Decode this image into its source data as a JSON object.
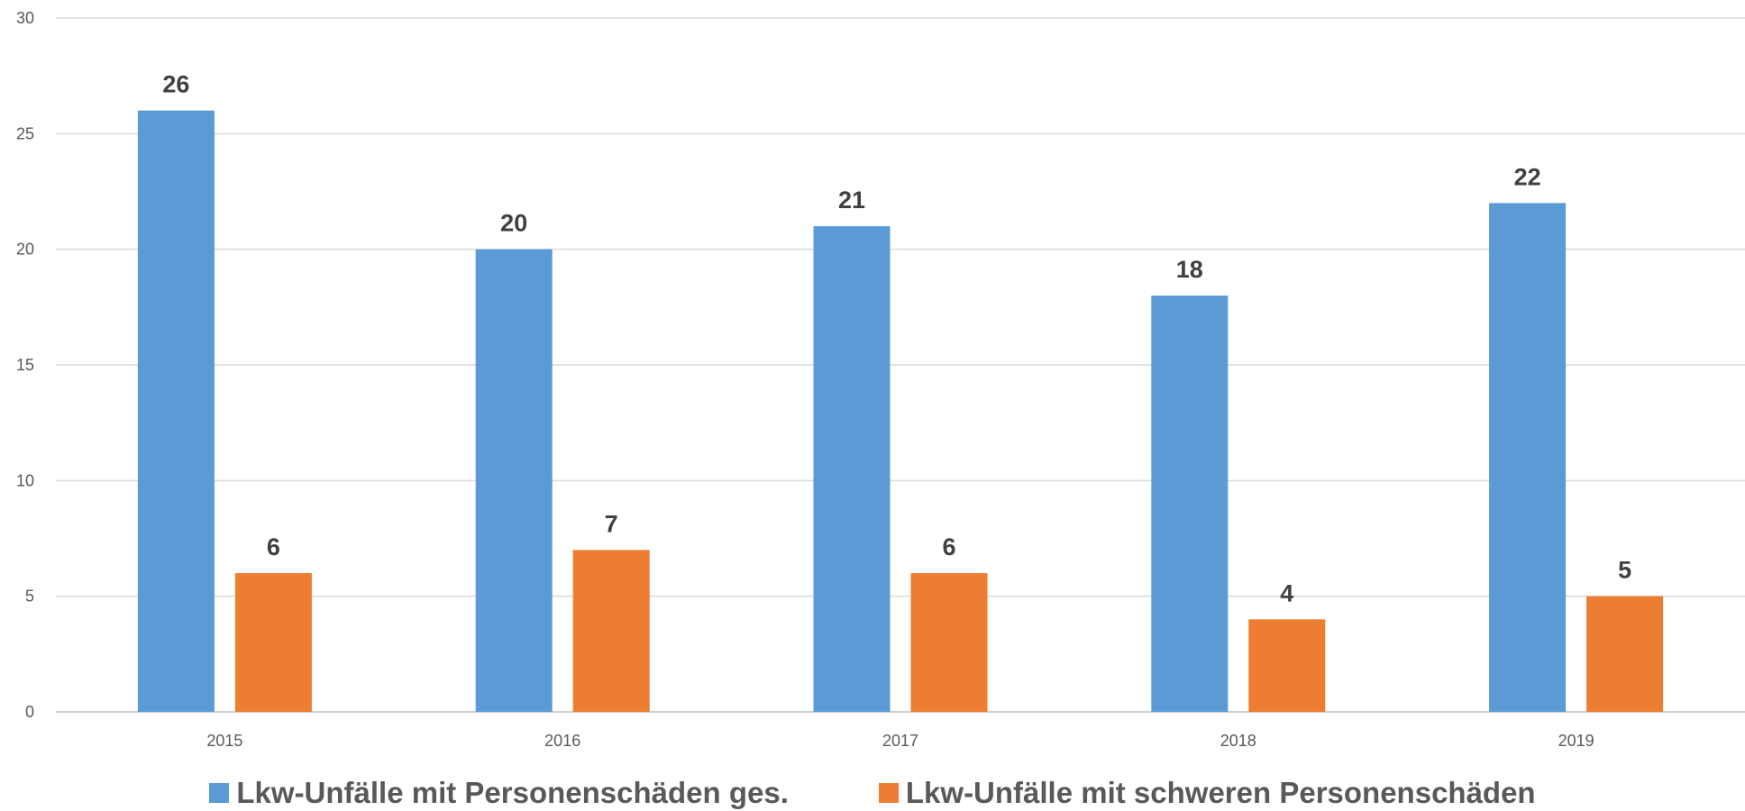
{
  "chart_data": {
    "type": "bar",
    "categories": [
      "2015",
      "2016",
      "2017",
      "2018",
      "2019"
    ],
    "series": [
      {
        "name": "Lkw-Unfälle mit Personenschäden ges.",
        "values": [
          26,
          20,
          21,
          18,
          22
        ],
        "color": "#5B9BD5"
      },
      {
        "name": "Lkw-Unfälle mit schweren Personenschäden",
        "values": [
          6,
          7,
          6,
          4,
          5
        ],
        "color": "#ED7D31"
      }
    ],
    "ylim": [
      0,
      30
    ],
    "yticks": [
      0,
      5,
      10,
      15,
      20,
      25,
      30
    ],
    "grid": true,
    "legend_position": "bottom",
    "data_labels": true,
    "title": "",
    "xlabel": "",
    "ylabel": ""
  }
}
